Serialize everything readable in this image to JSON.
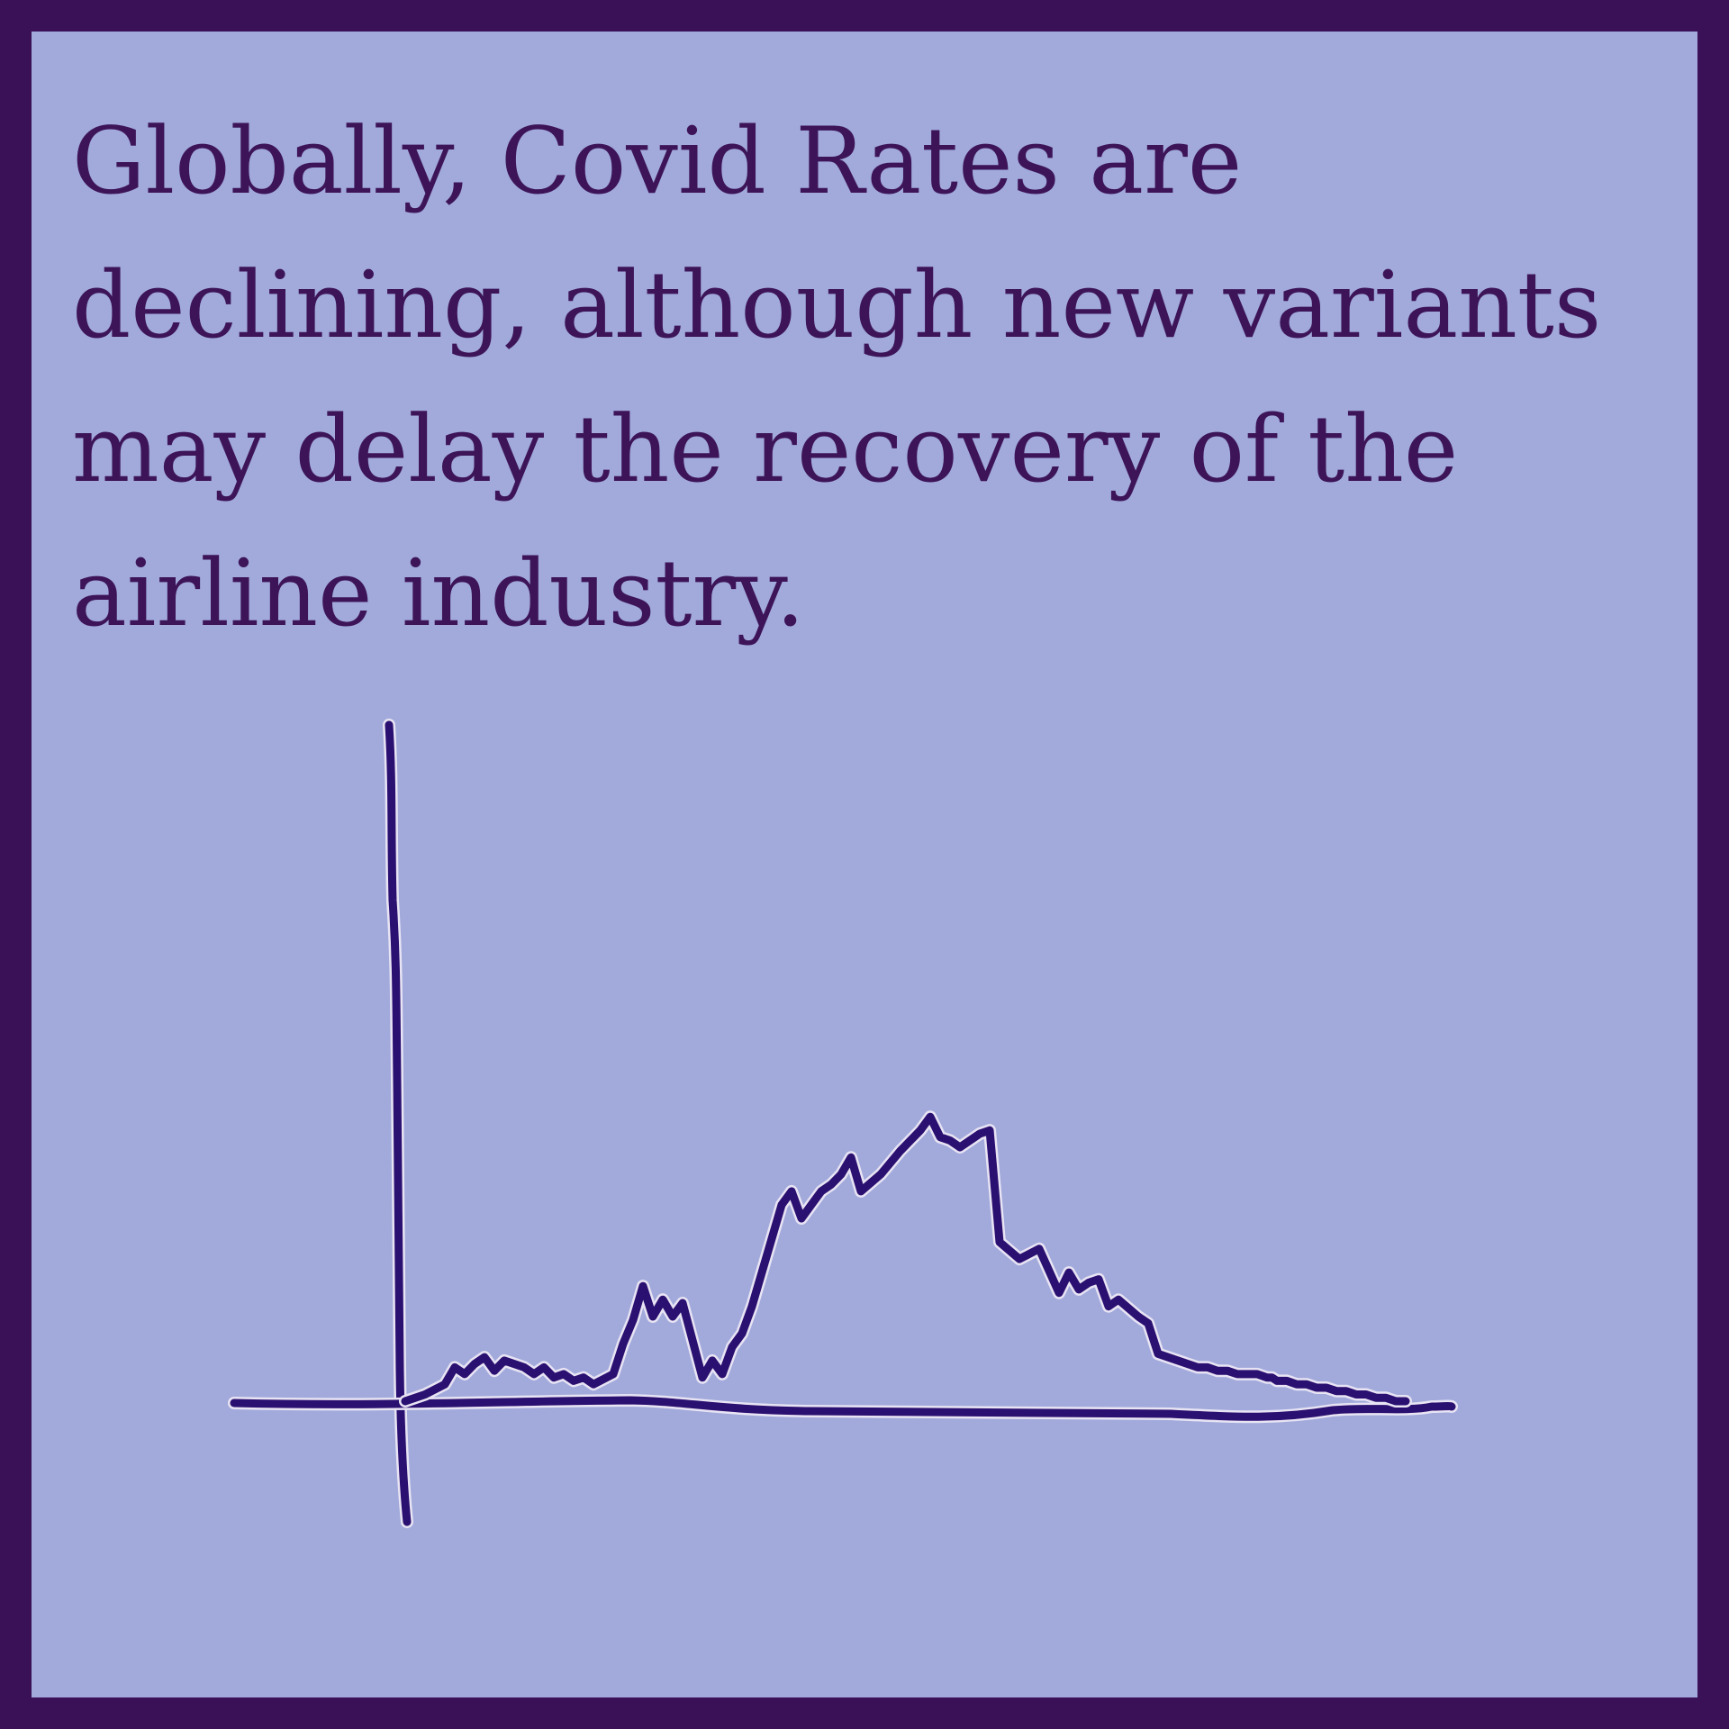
{
  "headline": "Globally, Covid Rates are declining, although new variants may delay the recovery of the airline industry.",
  "colors": {
    "background": "#a1aadb",
    "border": "#3a1157",
    "text": "#3d1458",
    "line": "#2a1070",
    "halo": "#e8e4f4"
  },
  "chart_data": {
    "type": "line",
    "title": "",
    "xlabel": "",
    "ylabel": "",
    "style": "hand-drawn sketch, no tick labels",
    "grid": false,
    "legend": "none",
    "xlim": [
      0,
      100
    ],
    "ylim": [
      0,
      100
    ],
    "series": [
      {
        "x": [
          0,
          2,
          4,
          5,
          6,
          7,
          8,
          9,
          10,
          12,
          13,
          14,
          15,
          16,
          17,
          18,
          19,
          21,
          22,
          23,
          24,
          25,
          26,
          27,
          28,
          29,
          30,
          31,
          32,
          33,
          34,
          35,
          36,
          37,
          38,
          39,
          40,
          41,
          42,
          43,
          44,
          45,
          46,
          48,
          50,
          52,
          53,
          54,
          55,
          56,
          57,
          58,
          59,
          60,
          62,
          64,
          66,
          67,
          68,
          69,
          70,
          71,
          72,
          74,
          75,
          76,
          77,
          78,
          79,
          80,
          81,
          82,
          83,
          84,
          85,
          86,
          87,
          87.5,
          88,
          89,
          90,
          91,
          92,
          93,
          94,
          95,
          96,
          97,
          98,
          99,
          100,
          101
        ],
        "y": [
          0,
          2,
          5,
          10,
          8,
          11,
          13,
          9,
          12,
          10,
          8,
          10,
          7,
          8,
          6,
          7,
          5,
          8,
          17,
          24,
          34,
          25,
          30,
          25,
          29,
          18,
          7,
          12,
          8,
          16,
          20,
          28,
          38,
          48,
          58,
          62,
          54,
          58,
          62,
          64,
          67,
          72,
          62,
          67,
          74,
          80,
          84,
          78,
          77,
          75,
          77,
          79,
          80,
          47,
          42,
          45,
          32,
          38,
          33,
          35,
          36,
          28,
          30,
          25,
          23,
          14,
          13,
          12,
          11,
          10,
          10,
          9,
          9,
          8,
          8,
          8,
          7,
          7,
          6,
          6,
          5,
          5,
          4,
          4,
          3,
          3,
          2,
          2,
          1,
          1,
          0,
          0
        ]
      }
    ]
  }
}
